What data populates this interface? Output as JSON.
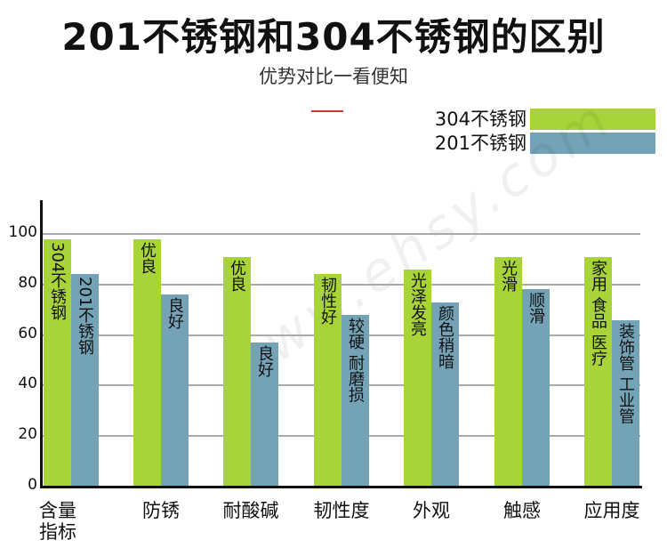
{
  "chart_data": {
    "type": "bar",
    "title": "201不锈钢和304不锈钢的区别",
    "subtitle": "优势对比一看便知",
    "categories": [
      "含量指标",
      "防锈",
      "耐酸碱",
      "韧性度",
      "外观",
      "触感",
      "应用度"
    ],
    "ylim": [
      0,
      100
    ],
    "yticks": [
      0,
      20,
      40,
      60,
      80,
      100
    ],
    "grid": true,
    "legend_position": "top-right",
    "series": [
      {
        "name": "304不锈钢",
        "color": "#a8d43a",
        "values": [
          98,
          98,
          91,
          84,
          86,
          91,
          91
        ],
        "labels": [
          "304不锈钢",
          "优良",
          "优良",
          "韧性好",
          "光泽发亮",
          "光滑",
          "家用 食品 医疗"
        ]
      },
      {
        "name": "201不锈钢",
        "color": "#74a3b8",
        "values": [
          84,
          76,
          57,
          68,
          73,
          78,
          66
        ],
        "labels": [
          "201不锈钢",
          "良好",
          "良好",
          "较硬 耐磨损",
          "颜色稍暗",
          "顺滑",
          "装饰管 工业管"
        ]
      }
    ]
  },
  "watermark": "www.ehsy.com"
}
